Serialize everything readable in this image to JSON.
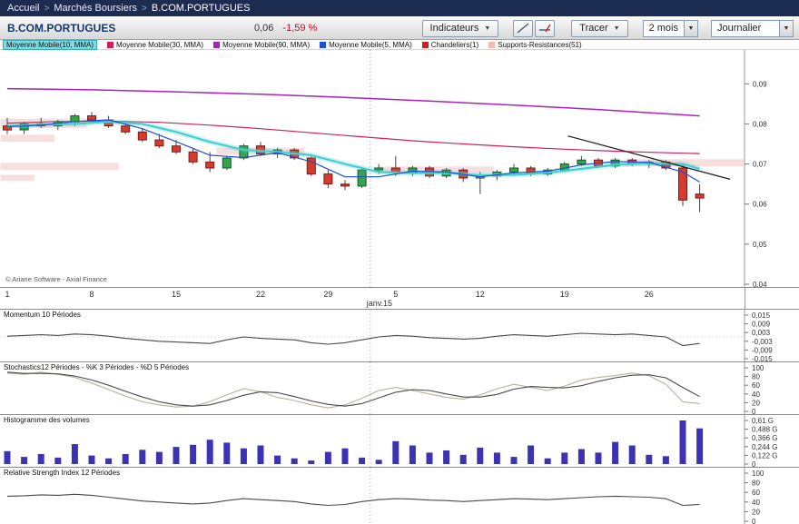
{
  "breadcrumb": {
    "separator": ">",
    "items": [
      "Accueil",
      "Marchés Boursiers",
      "B.COM.PORTUGUES"
    ]
  },
  "toolbar": {
    "symbol": "B.COM.PORTUGUES",
    "price": "0,06",
    "change": "-1,59 %",
    "indicators_button": "Indicateurs",
    "tracer_button": "Tracer",
    "period_select": "2 mois",
    "frequency_select": "Journalier"
  },
  "legend": {
    "items": [
      {
        "label": "Moyenne Mobile(10, MMA)",
        "color": "#45cfcf",
        "selected": true
      },
      {
        "label": "Moyenne Mobile(30, MMA)",
        "color": "#cc2255",
        "selected": false
      },
      {
        "label": "Moyenne Mobile(90, MMA)",
        "color": "#aa22bb",
        "selected": false
      },
      {
        "label": "Moyenne Mobile(5, MMA)",
        "color": "#1f4fd8",
        "selected": false
      },
      {
        "label": "Chandeliers(1)",
        "color": "#cc2222",
        "selected": false
      },
      {
        "label": "Supports-Resistances(51)",
        "color": "#f3b8b8",
        "selected": false
      }
    ]
  },
  "copyright": "© Ariane Software - Axial Finance",
  "chart_data": {
    "type": "candlestick",
    "symbol": "B.COM.PORTUGUES",
    "last_price": "0,06",
    "change_pct": "-1,59 %",
    "price_axis": {
      "min": 0.04,
      "max": 0.098,
      "ticks": [
        {
          "v": 0.09,
          "label": "0,09"
        },
        {
          "v": 0.08,
          "label": "0,08"
        },
        {
          "v": 0.07,
          "label": "0,07"
        },
        {
          "v": 0.06,
          "label": "0,06"
        },
        {
          "v": 0.05,
          "label": "0,05"
        },
        {
          "v": 0.04,
          "label": "0,04"
        }
      ]
    },
    "x_axis": {
      "month_label": "janv.15",
      "month_separator_i": 21.5,
      "ticks": [
        {
          "label": "1",
          "i": 0
        },
        {
          "label": "8",
          "i": 5
        },
        {
          "label": "15",
          "i": 10
        },
        {
          "label": "22",
          "i": 15
        },
        {
          "label": "29",
          "i": 19
        },
        {
          "label": "5",
          "i": 23
        },
        {
          "label": "12",
          "i": 28
        },
        {
          "label": "19",
          "i": 33
        },
        {
          "label": "26",
          "i": 38
        }
      ]
    },
    "candles": [
      [
        0.0795,
        0.0815,
        0.0775,
        0.0785
      ],
      [
        0.0785,
        0.0805,
        0.0775,
        0.08
      ],
      [
        0.08,
        0.0815,
        0.079,
        0.0795
      ],
      [
        0.0795,
        0.081,
        0.0785,
        0.0805
      ],
      [
        0.0805,
        0.0825,
        0.0795,
        0.082
      ],
      [
        0.082,
        0.083,
        0.0805,
        0.081
      ],
      [
        0.081,
        0.082,
        0.079,
        0.0795
      ],
      [
        0.0795,
        0.0805,
        0.0775,
        0.078
      ],
      [
        0.078,
        0.079,
        0.0755,
        0.076
      ],
      [
        0.076,
        0.0775,
        0.074,
        0.0745
      ],
      [
        0.0745,
        0.076,
        0.0725,
        0.073
      ],
      [
        0.073,
        0.074,
        0.07,
        0.0705
      ],
      [
        0.0705,
        0.073,
        0.068,
        0.069
      ],
      [
        0.069,
        0.072,
        0.0685,
        0.0715
      ],
      [
        0.0715,
        0.075,
        0.071,
        0.0745
      ],
      [
        0.0745,
        0.0755,
        0.072,
        0.0725
      ],
      [
        0.0725,
        0.074,
        0.0715,
        0.0735
      ],
      [
        0.0735,
        0.074,
        0.071,
        0.0715
      ],
      [
        0.0715,
        0.072,
        0.067,
        0.0675
      ],
      [
        0.0675,
        0.0685,
        0.064,
        0.065
      ],
      [
        0.065,
        0.066,
        0.0635,
        0.0645
      ],
      [
        0.0645,
        0.069,
        0.064,
        0.0685
      ],
      [
        0.0685,
        0.07,
        0.0675,
        0.069
      ],
      [
        0.069,
        0.072,
        0.067,
        0.068
      ],
      [
        0.068,
        0.0695,
        0.067,
        0.069
      ],
      [
        0.069,
        0.0695,
        0.0665,
        0.067
      ],
      [
        0.067,
        0.069,
        0.0665,
        0.0685
      ],
      [
        0.0685,
        0.069,
        0.0655,
        0.0665
      ],
      [
        0.0665,
        0.068,
        0.0625,
        0.067
      ],
      [
        0.067,
        0.0685,
        0.066,
        0.068
      ],
      [
        0.068,
        0.07,
        0.0675,
        0.069
      ],
      [
        0.069,
        0.0695,
        0.067,
        0.0675
      ],
      [
        0.0675,
        0.069,
        0.067,
        0.0685
      ],
      [
        0.0685,
        0.0705,
        0.068,
        0.07
      ],
      [
        0.07,
        0.072,
        0.0695,
        0.071
      ],
      [
        0.071,
        0.0715,
        0.069,
        0.0695
      ],
      [
        0.0695,
        0.0715,
        0.069,
        0.071
      ],
      [
        0.071,
        0.0715,
        0.0695,
        0.07
      ],
      [
        0.07,
        0.071,
        0.069,
        0.0705
      ],
      [
        0.0705,
        0.071,
        0.0685,
        0.069
      ],
      [
        0.069,
        0.07,
        0.0595,
        0.061
      ],
      [
        0.0625,
        0.065,
        0.058,
        0.0615
      ]
    ],
    "moving_averages": [
      {
        "name": "MMA90",
        "color": "#aa22bb",
        "width": 1.5,
        "layer": "under",
        "halo": false,
        "points": [
          [
            0,
            0.0888
          ],
          [
            5,
            0.0885
          ],
          [
            10,
            0.088
          ],
          [
            15,
            0.0874
          ],
          [
            20,
            0.0866
          ],
          [
            25,
            0.0857
          ],
          [
            30,
            0.0847
          ],
          [
            35,
            0.0836
          ],
          [
            38,
            0.0828
          ],
          [
            41,
            0.082
          ]
        ]
      },
      {
        "name": "MMA30",
        "color": "#cc2255",
        "width": 1.2,
        "layer": "under",
        "halo": false,
        "points": [
          [
            0,
            0.0802
          ],
          [
            3,
            0.0806
          ],
          [
            6,
            0.0807
          ],
          [
            9,
            0.0804
          ],
          [
            12,
            0.0797
          ],
          [
            15,
            0.0788
          ],
          [
            18,
            0.0778
          ],
          [
            21,
            0.0768
          ],
          [
            24,
            0.0758
          ],
          [
            27,
            0.075
          ],
          [
            30,
            0.0743
          ],
          [
            33,
            0.0737
          ],
          [
            36,
            0.0732
          ],
          [
            39,
            0.0728
          ],
          [
            41,
            0.0726
          ]
        ]
      },
      {
        "name": "MMA10",
        "color": "#45cfcf",
        "width": 2.2,
        "layer": "over",
        "halo": true,
        "points": [
          [
            0,
            0.0795
          ],
          [
            2,
            0.0798
          ],
          [
            4,
            0.08
          ],
          [
            6,
            0.0805
          ],
          [
            8,
            0.08
          ],
          [
            10,
            0.078
          ],
          [
            12,
            0.0755
          ],
          [
            14,
            0.0735
          ],
          [
            16,
            0.073
          ],
          [
            18,
            0.0722
          ],
          [
            20,
            0.07
          ],
          [
            22,
            0.068
          ],
          [
            24,
            0.0677
          ],
          [
            26,
            0.0678
          ],
          [
            28,
            0.0672
          ],
          [
            30,
            0.0673
          ],
          [
            32,
            0.0678
          ],
          [
            34,
            0.0688
          ],
          [
            36,
            0.0698
          ],
          [
            38,
            0.0702
          ],
          [
            40,
            0.07
          ],
          [
            41,
            0.0688
          ]
        ]
      },
      {
        "name": "MMA5",
        "color": "#1f4fd8",
        "width": 1.2,
        "layer": "over",
        "halo": false,
        "points": [
          [
            0,
            0.0793
          ],
          [
            2,
            0.0797
          ],
          [
            4,
            0.0806
          ],
          [
            6,
            0.081
          ],
          [
            8,
            0.0788
          ],
          [
            10,
            0.0756
          ],
          [
            12,
            0.0722
          ],
          [
            14,
            0.0716
          ],
          [
            16,
            0.0728
          ],
          [
            18,
            0.0706
          ],
          [
            20,
            0.0668
          ],
          [
            22,
            0.0668
          ],
          [
            24,
            0.0682
          ],
          [
            26,
            0.068
          ],
          [
            28,
            0.0668
          ],
          [
            30,
            0.0678
          ],
          [
            32,
            0.0682
          ],
          [
            34,
            0.0698
          ],
          [
            36,
            0.0706
          ],
          [
            38,
            0.0704
          ],
          [
            40,
            0.068
          ],
          [
            41,
            0.0655
          ]
        ]
      }
    ],
    "trend_line": {
      "i1": 33.2,
      "p1": 0.077,
      "i2": 42.8,
      "p2": 0.0662
    },
    "support_zones": [
      {
        "i1": -0.4,
        "i2": 4.7,
        "p1": 0.079,
        "p2": 0.0813
      },
      {
        "i1": -0.4,
        "i2": 2.8,
        "p1": 0.0755,
        "p2": 0.0773
      },
      {
        "i1": -0.4,
        "i2": 6.6,
        "p1": 0.0685,
        "p2": 0.0703
      },
      {
        "i1": -0.4,
        "i2": 1.6,
        "p1": 0.0658,
        "p2": 0.0673
      },
      {
        "i1": 12.4,
        "i2": 17.6,
        "p1": 0.0723,
        "p2": 0.0741
      },
      {
        "i1": 22.0,
        "i2": 28.8,
        "p1": 0.0678,
        "p2": 0.0694
      },
      {
        "i1": 36.6,
        "i2": 43.6,
        "p1": 0.0694,
        "p2": 0.0712
      }
    ],
    "panels": [
      {
        "id": "momentum",
        "title": "Momentum 10 Périodes",
        "min": -0.015,
        "max": 0.015,
        "zero_line": true,
        "ticks": [
          {
            "v": 0.015,
            "label": "0,015"
          },
          {
            "v": 0.009,
            "label": "0,009"
          },
          {
            "v": 0.003,
            "label": "0,003"
          },
          {
            "v": -0.003,
            "label": "-0,003"
          },
          {
            "v": -0.009,
            "label": "-0,009"
          },
          {
            "v": -0.015,
            "label": "-0,015"
          }
        ],
        "series": [
          {
            "name": "momentum",
            "color": "#4a4a4a",
            "values": [
              0.0005,
              0.001,
              0.0015,
              0.001,
              0.002,
              0.0015,
              0.0005,
              -0.001,
              -0.002,
              -0.003,
              -0.0035,
              -0.004,
              -0.0045,
              -0.002,
              0.0,
              -0.001,
              -0.0015,
              -0.002,
              -0.004,
              -0.005,
              -0.004,
              -0.002,
              0.0,
              0.001,
              0.0005,
              -0.0005,
              -0.001,
              -0.0015,
              -0.001,
              0.0005,
              0.0015,
              0.001,
              0.0005,
              0.0015,
              0.0025,
              0.002,
              0.0015,
              0.002,
              0.001,
              0.0,
              -0.006,
              -0.0045
            ]
          }
        ]
      },
      {
        "id": "stochastics",
        "title": "Stochastics12 Périodes -  %K 3 Périodes  -  %D 5 Périodes",
        "min": 0,
        "max": 100,
        "zero_line": false,
        "ticks": [
          {
            "v": 100,
            "label": "100"
          },
          {
            "v": 80,
            "label": "80"
          },
          {
            "v": 60,
            "label": "60"
          },
          {
            "v": 40,
            "label": "40"
          },
          {
            "v": 20,
            "label": "20"
          },
          {
            "v": 0,
            "label": "0"
          }
        ],
        "series": [
          {
            "name": "K",
            "color": "#b9b0a0",
            "values": [
              88,
              85,
              90,
              85,
              78,
              65,
              50,
              35,
              22,
              15,
              10,
              12,
              22,
              38,
              52,
              45,
              32,
              25,
              15,
              8,
              15,
              30,
              48,
              55,
              48,
              40,
              32,
              28,
              38,
              52,
              62,
              55,
              48,
              58,
              72,
              78,
              82,
              88,
              82,
              62,
              22,
              18
            ]
          },
          {
            "name": "D",
            "color": "#4a4a4a",
            "values": [
              90,
              87,
              87,
              86,
              81,
              72,
              60,
              46,
              33,
              22,
              15,
              12,
              15,
              25,
              37,
              45,
              43,
              34,
              24,
              16,
              12,
              18,
              31,
              44,
              50,
              48,
              40,
              33,
              33,
              39,
              51,
              57,
              55,
              54,
              59,
              69,
              77,
              83,
              84,
              77,
              55,
              34
            ]
          }
        ]
      },
      {
        "id": "volumes",
        "title": "Histogramme des volumes",
        "min": 0,
        "max": 0.61,
        "zero_line": false,
        "type": "bars",
        "bar_color": "#3b32b4",
        "ticks": [
          {
            "v": 0.61,
            "label": "0,61 G"
          },
          {
            "v": 0.488,
            "label": "0,488 G"
          },
          {
            "v": 0.366,
            "label": "0,366 G"
          },
          {
            "v": 0.244,
            "label": "0,244 G"
          },
          {
            "v": 0.122,
            "label": "0,122 G"
          },
          {
            "v": 0,
            "label": "0"
          }
        ],
        "series": [
          {
            "name": "volume",
            "values": [
              0.18,
              0.1,
              0.14,
              0.09,
              0.28,
              0.12,
              0.08,
              0.14,
              0.2,
              0.17,
              0.24,
              0.27,
              0.34,
              0.3,
              0.22,
              0.26,
              0.12,
              0.08,
              0.05,
              0.17,
              0.22,
              0.09,
              0.06,
              0.32,
              0.26,
              0.16,
              0.19,
              0.13,
              0.23,
              0.16,
              0.1,
              0.26,
              0.08,
              0.16,
              0.21,
              0.16,
              0.31,
              0.26,
              0.13,
              0.11,
              0.61,
              0.5
            ]
          }
        ]
      },
      {
        "id": "rsi",
        "title": "Relative Strength Index 12 Périodes",
        "min": 0,
        "max": 100,
        "zero_line": false,
        "ticks": [
          {
            "v": 100,
            "label": "100"
          },
          {
            "v": 80,
            "label": "80"
          },
          {
            "v": 60,
            "label": "60"
          },
          {
            "v": 40,
            "label": "40"
          },
          {
            "v": 20,
            "label": "20"
          },
          {
            "v": 0,
            "label": "0"
          }
        ],
        "series": [
          {
            "name": "RSI",
            "color": "#4a4a4a",
            "values": [
              52,
              53,
              55,
              54,
              56,
              54,
              50,
              46,
              42,
              40,
              38,
              36,
              38,
              43,
              47,
              45,
              43,
              41,
              36,
              33,
              35,
              41,
              45,
              47,
              46,
              44,
              43,
              41,
              43,
              45,
              47,
              46,
              45,
              47,
              49,
              51,
              52,
              51,
              50,
              47,
              33,
              35
            ]
          }
        ]
      }
    ]
  }
}
